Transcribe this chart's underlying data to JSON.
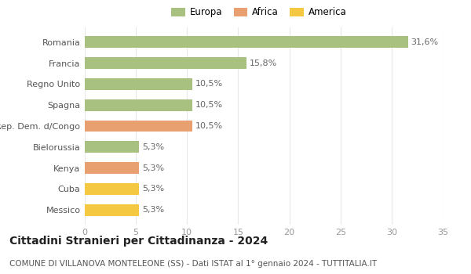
{
  "categories": [
    "Messico",
    "Cuba",
    "Kenya",
    "Bielorussia",
    "Rep. Dem. d/Congo",
    "Spagna",
    "Regno Unito",
    "Francia",
    "Romania"
  ],
  "values": [
    5.3,
    5.3,
    5.3,
    5.3,
    10.5,
    10.5,
    10.5,
    15.8,
    31.6
  ],
  "labels": [
    "5,3%",
    "5,3%",
    "5,3%",
    "5,3%",
    "10,5%",
    "10,5%",
    "10,5%",
    "15,8%",
    "31,6%"
  ],
  "colors": [
    "#f5c842",
    "#f5c842",
    "#e8a070",
    "#a8c080",
    "#e8a070",
    "#a8c080",
    "#a8c080",
    "#a8c080",
    "#a8c080"
  ],
  "legend": [
    {
      "label": "Europa",
      "color": "#a8c080"
    },
    {
      "label": "Africa",
      "color": "#e8a070"
    },
    {
      "label": "America",
      "color": "#f5c842"
    }
  ],
  "title": "Cittadini Stranieri per Cittadinanza - 2024",
  "subtitle": "COMUNE DI VILLANOVA MONTELEONE (SS) - Dati ISTAT al 1° gennaio 2024 - TUTTITALIA.IT",
  "xlim": [
    0,
    35
  ],
  "xticks": [
    0,
    5,
    10,
    15,
    20,
    25,
    30,
    35
  ],
  "background_color": "#ffffff",
  "grid_color": "#e8e8e8",
  "bar_height": 0.55,
  "label_fontsize": 8,
  "title_fontsize": 10,
  "subtitle_fontsize": 7.5,
  "tick_fontsize": 8,
  "legend_fontsize": 8.5
}
